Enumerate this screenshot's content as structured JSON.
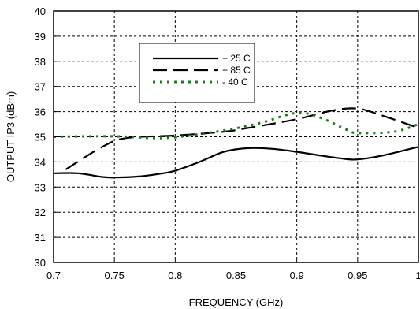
{
  "chart_data": {
    "type": "line",
    "title": "",
    "xlabel": "FREQUENCY (GHz)",
    "ylabel": "OUTPUT  IP3 (dBm)",
    "xlim": [
      0.7,
      1.0
    ],
    "ylim": [
      30,
      40
    ],
    "xticks": [
      0.7,
      0.75,
      0.8,
      0.85,
      0.9,
      0.95,
      1.0
    ],
    "xtick_labels": [
      "0.7",
      "0.75",
      "0.8",
      "0.85",
      "0.9",
      "0.95",
      "1"
    ],
    "yticks": [
      30,
      31,
      32,
      33,
      34,
      35,
      36,
      37,
      38,
      39,
      40
    ],
    "ytick_labels": [
      "30",
      "31",
      "32",
      "33",
      "34",
      "35",
      "36",
      "37",
      "38",
      "39",
      "40"
    ],
    "grid": true,
    "legend_position": "upper-center",
    "series": [
      {
        "name": "+ 25 C",
        "style": "solid",
        "color": "#000000",
        "points": [
          [
            0.7,
            33.55
          ],
          [
            0.72,
            33.55
          ],
          [
            0.74,
            33.4
          ],
          [
            0.75,
            33.38
          ],
          [
            0.77,
            33.42
          ],
          [
            0.79,
            33.55
          ],
          [
            0.8,
            33.65
          ],
          [
            0.82,
            34.0
          ],
          [
            0.84,
            34.4
          ],
          [
            0.86,
            34.55
          ],
          [
            0.88,
            34.52
          ],
          [
            0.9,
            34.4
          ],
          [
            0.92,
            34.25
          ],
          [
            0.94,
            34.12
          ],
          [
            0.95,
            34.1
          ],
          [
            0.97,
            34.25
          ],
          [
            1.0,
            34.6
          ]
        ]
      },
      {
        "name": "+ 85 C",
        "style": "dashed",
        "color": "#000000",
        "points": [
          [
            0.71,
            33.7
          ],
          [
            0.74,
            34.6
          ],
          [
            0.76,
            34.95
          ],
          [
            0.8,
            35.05
          ],
          [
            0.84,
            35.2
          ],
          [
            0.86,
            35.35
          ],
          [
            0.9,
            35.7
          ],
          [
            0.93,
            36.05
          ],
          [
            0.95,
            36.12
          ],
          [
            0.97,
            35.85
          ],
          [
            1.0,
            35.35
          ]
        ]
      },
      {
        "name": "- 40 C",
        "style": "dotted",
        "color": "#1f7a1f",
        "points": [
          [
            0.7,
            35.0
          ],
          [
            0.75,
            35.02
          ],
          [
            0.78,
            34.95
          ],
          [
            0.8,
            34.98
          ],
          [
            0.84,
            35.25
          ],
          [
            0.87,
            35.55
          ],
          [
            0.9,
            35.95
          ],
          [
            0.92,
            35.75
          ],
          [
            0.94,
            35.3
          ],
          [
            0.95,
            35.15
          ],
          [
            0.98,
            35.2
          ],
          [
            1.0,
            35.5
          ]
        ]
      }
    ]
  }
}
